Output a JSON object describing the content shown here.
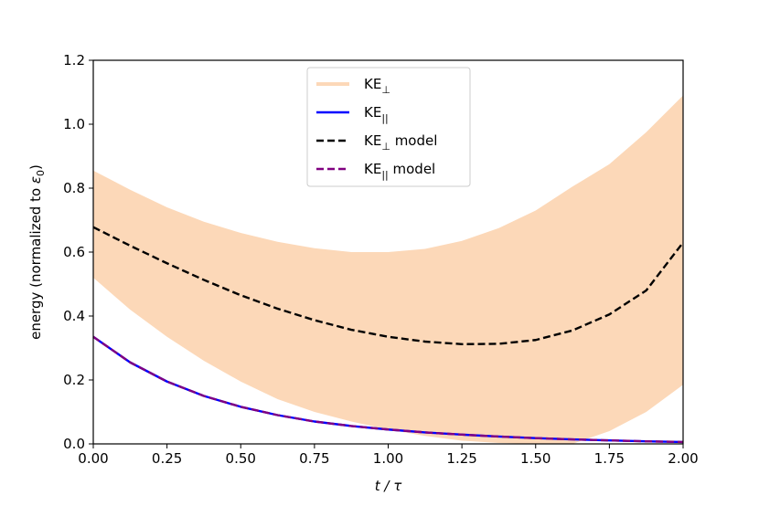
{
  "chart_data": {
    "type": "line",
    "xlabel": "t / τ",
    "ylabel": "energy (normalized to ε0)",
    "xlim": [
      0.0,
      2.0
    ],
    "ylim": [
      0.0,
      1.2
    ],
    "x_ticks": [
      0.0,
      0.25,
      0.5,
      0.75,
      1.0,
      1.25,
      1.5,
      1.75,
      2.0
    ],
    "x_tick_labels": [
      "0.00",
      "0.25",
      "0.50",
      "0.75",
      "1.00",
      "1.25",
      "1.50",
      "1.75",
      "2.00"
    ],
    "y_ticks": [
      0.0,
      0.2,
      0.4,
      0.6,
      0.8,
      1.0,
      1.2
    ],
    "y_tick_labels": [
      "0.0",
      "0.2",
      "0.4",
      "0.6",
      "0.8",
      "1.0",
      "1.2"
    ],
    "grid": false,
    "legend_position": "upper-center",
    "x": [
      0.0,
      0.125,
      0.25,
      0.375,
      0.5,
      0.625,
      0.75,
      0.875,
      1.0,
      1.125,
      1.25,
      1.375,
      1.5,
      1.625,
      1.75,
      1.875,
      2.0
    ],
    "band": {
      "name": "KE⊥",
      "color": "#fcd8b8",
      "upper": [
        0.855,
        0.795,
        0.74,
        0.695,
        0.66,
        0.632,
        0.612,
        0.6,
        0.6,
        0.61,
        0.635,
        0.675,
        0.73,
        0.805,
        0.875,
        0.975,
        1.09
      ],
      "lower": [
        0.52,
        0.42,
        0.335,
        0.26,
        0.195,
        0.14,
        0.1,
        0.07,
        0.045,
        0.025,
        0.01,
        0.003,
        0.0,
        0.0,
        0.04,
        0.1,
        0.185
      ]
    },
    "series": [
      {
        "name": "KE∥",
        "color": "#0000ff",
        "style": "solid",
        "values": [
          0.335,
          0.255,
          0.195,
          0.15,
          0.116,
          0.09,
          0.07,
          0.056,
          0.045,
          0.036,
          0.029,
          0.023,
          0.018,
          0.014,
          0.011,
          0.008,
          0.006
        ]
      },
      {
        "name": "KE⊥ model",
        "color": "#000000",
        "style": "dashed",
        "values": [
          0.678,
          0.62,
          0.565,
          0.513,
          0.465,
          0.423,
          0.387,
          0.357,
          0.335,
          0.32,
          0.312,
          0.313,
          0.325,
          0.355,
          0.405,
          0.48,
          0.63
        ]
      },
      {
        "name": "KE∥ model",
        "color": "#800080",
        "style": "dashed",
        "values": [
          0.335,
          0.255,
          0.195,
          0.15,
          0.116,
          0.09,
          0.07,
          0.056,
          0.045,
          0.036,
          0.029,
          0.023,
          0.018,
          0.014,
          0.011,
          0.008,
          0.006
        ]
      }
    ],
    "legend": [
      {
        "base": "KE",
        "sub": "⊥",
        "suffix": ""
      },
      {
        "base": "KE",
        "sub": "||",
        "suffix": ""
      },
      {
        "base": "KE",
        "sub": "⊥",
        "suffix": " model"
      },
      {
        "base": "KE",
        "sub": "||",
        "suffix": " model"
      }
    ]
  }
}
